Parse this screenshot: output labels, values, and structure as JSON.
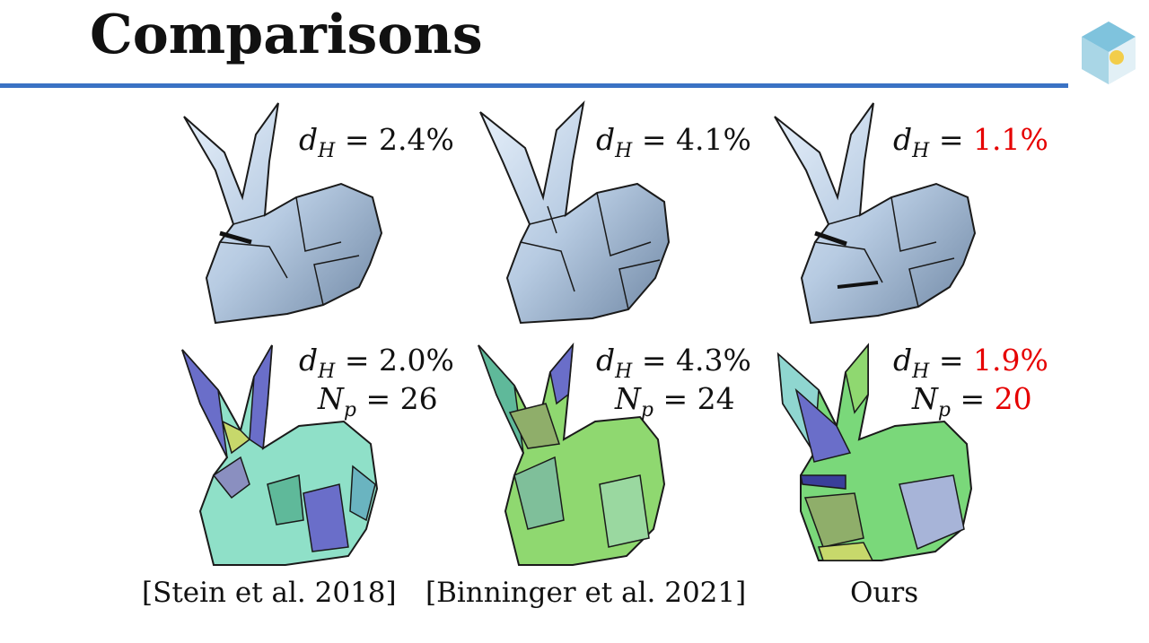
{
  "slide": {
    "title": "Comparisons"
  },
  "top_row": [
    {
      "var": "d",
      "sub": "H",
      "eq": "=",
      "value": "2.4%",
      "highlight": false
    },
    {
      "var": "d",
      "sub": "H",
      "eq": "=",
      "value": "4.1%",
      "highlight": false
    },
    {
      "var": "d",
      "sub": "H",
      "eq": "=",
      "value": "1.1%",
      "highlight": true
    }
  ],
  "bottom_row": [
    {
      "dh": "2.0%",
      "np": "26",
      "highlight": false
    },
    {
      "dh": "4.3%",
      "np": "24",
      "highlight": false
    },
    {
      "dh": "1.9%",
      "np": "20",
      "highlight": true
    }
  ],
  "math": {
    "d": "d",
    "H": "H",
    "N": "N",
    "p": "p",
    "eq": "="
  },
  "captions": [
    "[Stein et al. 2018]",
    "[Binninger et al. 2021]",
    "Ours"
  ],
  "colors": {
    "accent_rule": "#3a72c4",
    "highlight": "#e60000"
  },
  "icons": {
    "logo": "cube-logo-icon",
    "bunny_shaded": "bunny-render",
    "bunny_patches": "bunny-patch-render"
  }
}
